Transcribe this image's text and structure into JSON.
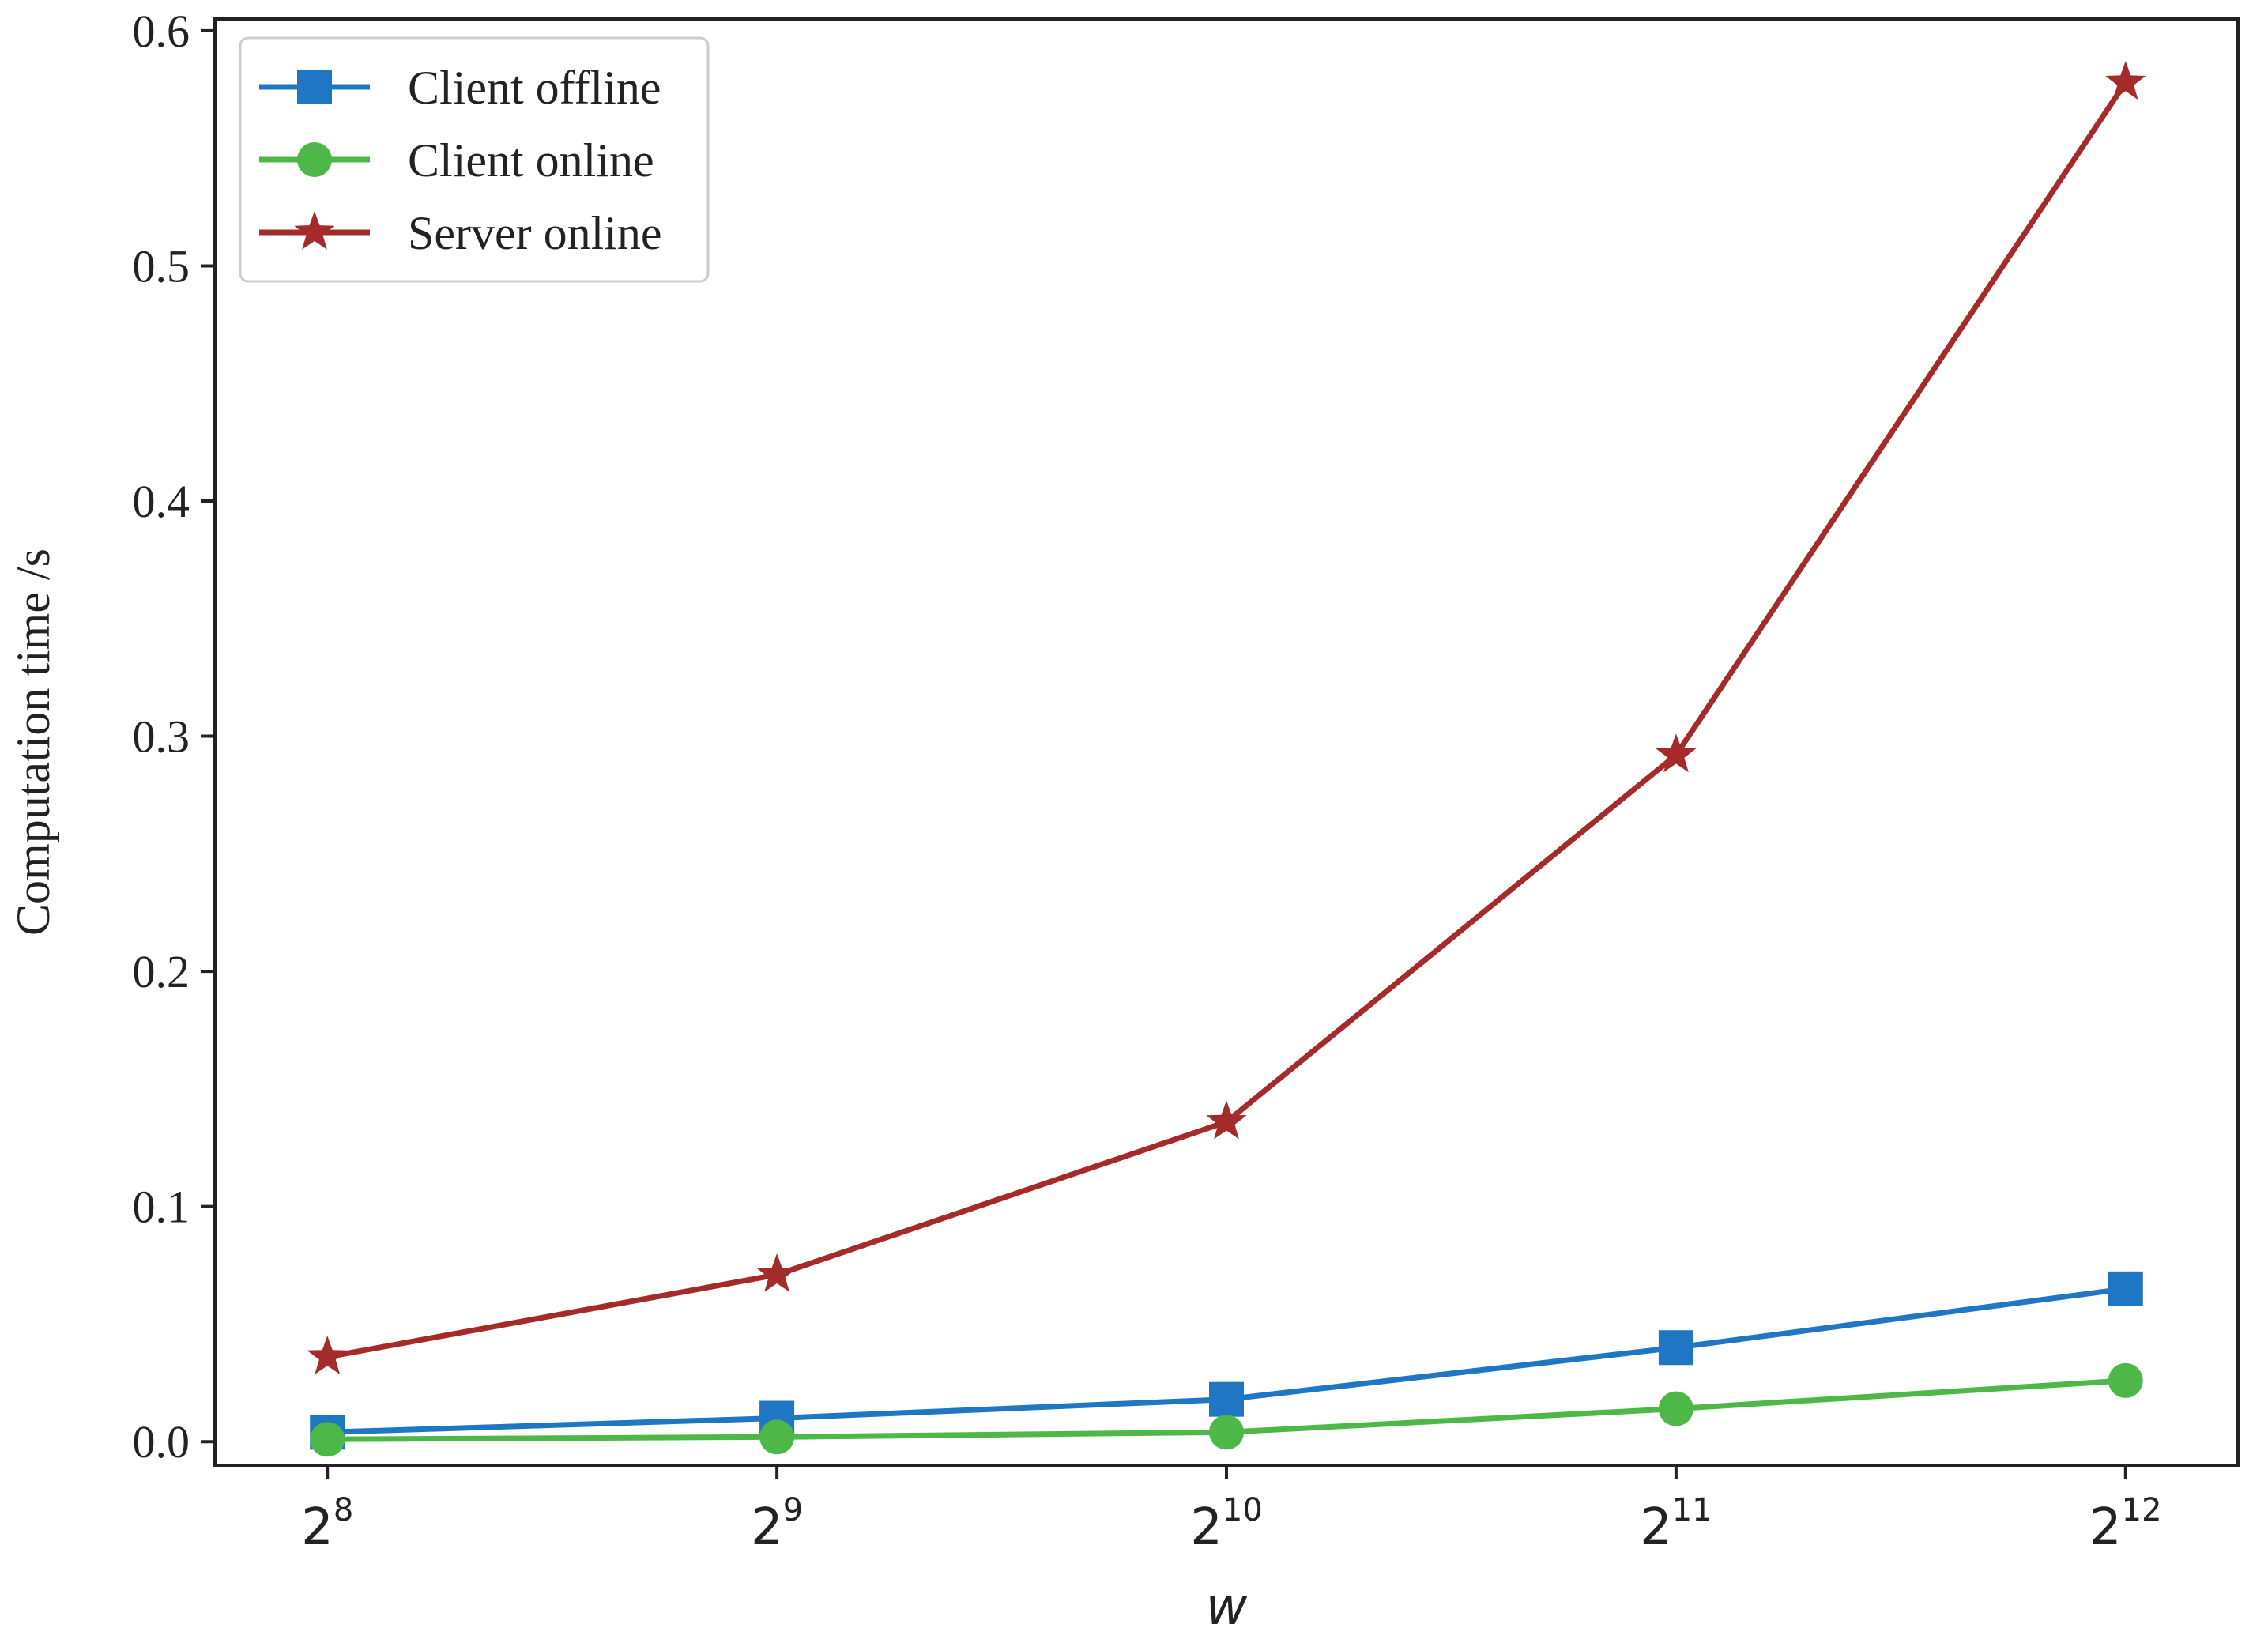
{
  "chart_data": {
    "type": "line",
    "title": "",
    "xlabel": "w",
    "ylabel": "Computation time /s",
    "x": [
      8,
      9,
      10,
      11,
      12
    ],
    "x_scale": "log2",
    "x_tick_labels": [
      {
        "base": "2",
        "exp": "8"
      },
      {
        "base": "2",
        "exp": "9"
      },
      {
        "base": "2",
        "exp": "10"
      },
      {
        "base": "2",
        "exp": "11"
      },
      {
        "base": "2",
        "exp": "12"
      }
    ],
    "ylim": [
      -0.01,
      0.605
    ],
    "y_ticks": [
      0.0,
      0.1,
      0.2,
      0.3,
      0.4,
      0.5,
      0.6
    ],
    "y_tick_labels": [
      "0.0",
      "0.1",
      "0.2",
      "0.3",
      "0.4",
      "0.5",
      "0.6"
    ],
    "grid": false,
    "legend_position": "top-left",
    "series": [
      {
        "name": "Client offline",
        "color": "#1f77c4",
        "marker": "square",
        "values": [
          0.004,
          0.01,
          0.018,
          0.04,
          0.065
        ]
      },
      {
        "name": "Client online",
        "color": "#4db848",
        "marker": "circle",
        "values": [
          0.001,
          0.002,
          0.004,
          0.014,
          0.026
        ]
      },
      {
        "name": "Server online",
        "color": "#a52a2a",
        "marker": "star",
        "values": [
          0.036,
          0.071,
          0.136,
          0.292,
          0.578
        ]
      }
    ]
  }
}
